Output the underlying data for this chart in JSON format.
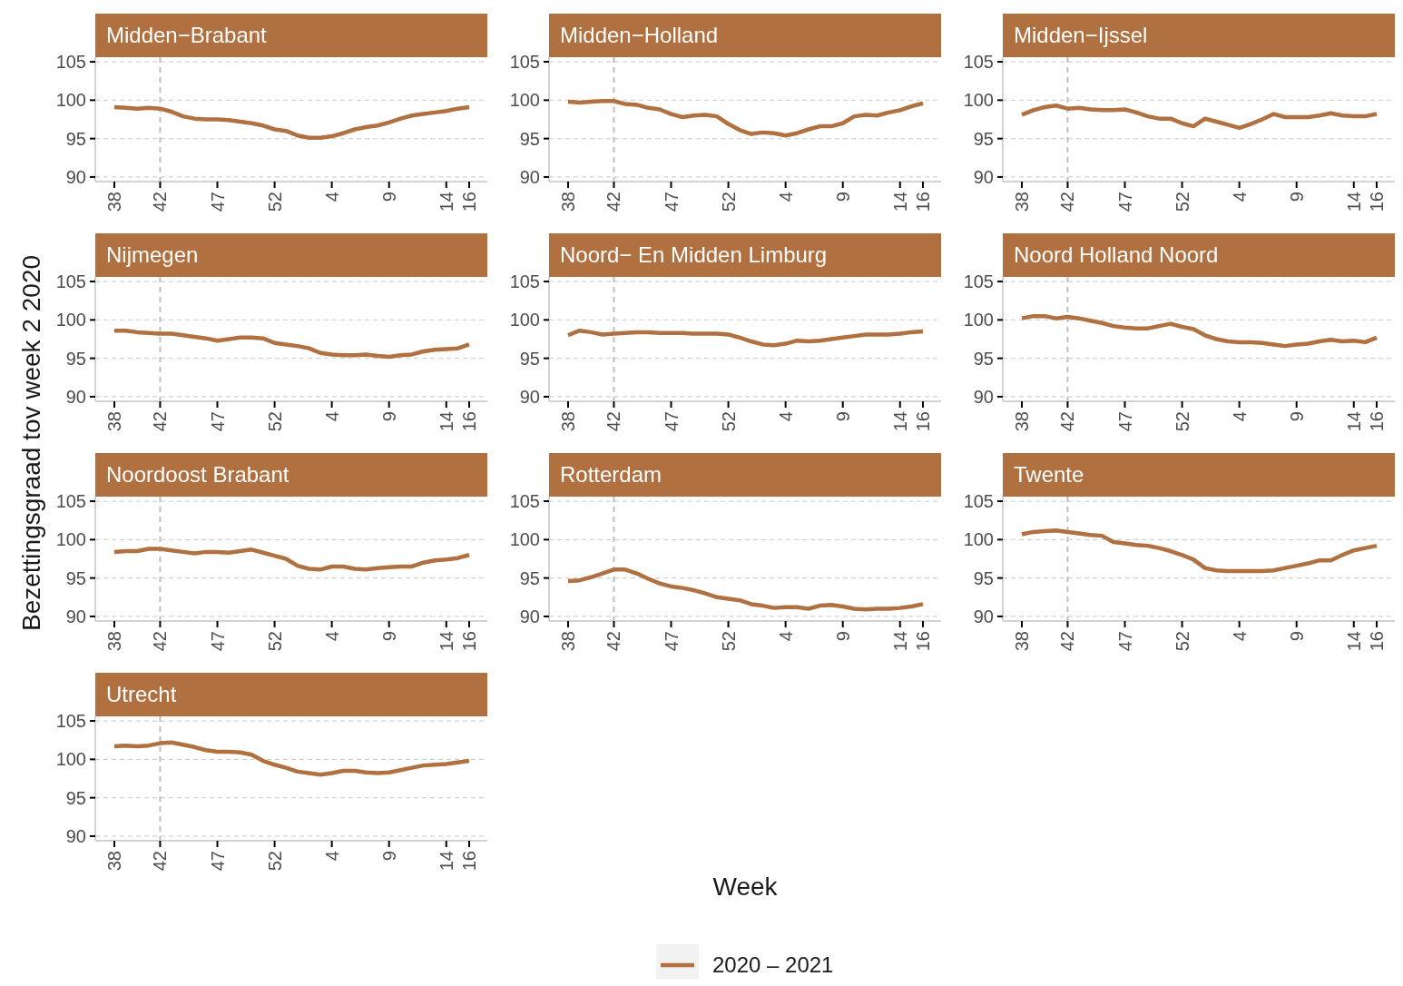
{
  "chart_data": [
    {
      "type": "line",
      "title": "Midden−Brabant",
      "ylabel": "Bezettingsgraad tov week 2 2020",
      "legend": "bottom",
      "categories": [
        "38",
        null,
        null,
        null,
        "42",
        null,
        null,
        null,
        null,
        "47",
        null,
        null,
        null,
        null,
        "52",
        null,
        null,
        null,
        null,
        "4",
        null,
        null,
        null,
        null,
        "9",
        null,
        null,
        null,
        null,
        "14",
        null,
        "16"
      ],
      "ylim": [
        89.4,
        105.6
      ],
      "yticks": [
        90,
        95,
        100,
        105
      ],
      "grid": "y",
      "ref_lines": [
        {
          "axis": "x",
          "value": "42",
          "label": null,
          "color": "#bebebe",
          "line_style": "dashed"
        }
      ],
      "series": [
        {
          "name": "2020 – 2021",
          "color": "#b07040",
          "values": [
            99.1,
            99.0,
            98.9,
            99.0,
            98.9,
            98.5,
            97.9,
            97.6,
            97.5,
            97.5,
            97.4,
            97.2,
            97.0,
            96.7,
            96.2,
            96.0,
            95.4,
            95.1,
            95.1,
            95.3,
            95.7,
            96.2,
            96.5,
            96.7,
            97.1,
            97.6,
            98.0,
            98.2,
            98.4,
            98.6,
            98.9,
            99.1
          ]
        }
      ]
    },
    {
      "type": "line",
      "title": "Midden−Holland",
      "categories": [
        "38",
        null,
        null,
        null,
        "42",
        null,
        null,
        null,
        null,
        "47",
        null,
        null,
        null,
        null,
        "52",
        null,
        null,
        null,
        null,
        "4",
        null,
        null,
        null,
        null,
        "9",
        null,
        null,
        null,
        null,
        "14",
        null,
        "16"
      ],
      "ylim": [
        89.4,
        105.6
      ],
      "yticks": [
        90,
        95,
        100,
        105
      ],
      "grid": "y",
      "ref_lines": [
        {
          "axis": "x",
          "value": "42",
          "label": null,
          "color": "#bebebe",
          "line_style": "dashed"
        }
      ],
      "series": [
        {
          "color": "#b07040",
          "values": [
            99.8,
            99.7,
            99.8,
            99.9,
            99.9,
            99.5,
            99.4,
            99.0,
            98.8,
            98.2,
            97.8,
            98.0,
            98.1,
            97.9,
            96.9,
            96.1,
            95.6,
            95.8,
            95.7,
            95.4,
            95.7,
            96.2,
            96.6,
            96.6,
            97.0,
            97.9,
            98.1,
            98.0,
            98.4,
            98.7,
            99.2,
            99.6
          ]
        }
      ]
    },
    {
      "type": "line",
      "title": "Midden−Ijssel",
      "categories": [
        "38",
        null,
        null,
        null,
        "42",
        null,
        null,
        null,
        null,
        "47",
        null,
        null,
        null,
        null,
        "52",
        null,
        null,
        null,
        null,
        "4",
        null,
        null,
        null,
        null,
        "9",
        null,
        null,
        null,
        null,
        "14",
        null,
        "16"
      ],
      "ylim": [
        89.4,
        105.6
      ],
      "yticks": [
        90,
        95,
        100,
        105
      ],
      "grid": "y",
      "ref_lines": [
        {
          "axis": "x",
          "value": "42",
          "label": null,
          "color": "#bebebe",
          "line_style": "dashed"
        }
      ],
      "series": [
        {
          "color": "#b07040",
          "values": [
            98.1,
            98.7,
            99.1,
            99.3,
            98.9,
            99.0,
            98.8,
            98.7,
            98.7,
            98.8,
            98.4,
            97.9,
            97.6,
            97.6,
            97.0,
            96.6,
            97.6,
            97.2,
            96.8,
            96.4,
            96.9,
            97.5,
            98.2,
            97.8,
            97.8,
            97.8,
            98.0,
            98.3,
            98.0,
            97.9,
            97.9,
            98.2
          ]
        }
      ]
    },
    {
      "type": "line",
      "title": "Nijmegen",
      "categories": [
        "38",
        null,
        null,
        null,
        "42",
        null,
        null,
        null,
        null,
        "47",
        null,
        null,
        null,
        null,
        "52",
        null,
        null,
        null,
        null,
        "4",
        null,
        null,
        null,
        null,
        "9",
        null,
        null,
        null,
        null,
        "14",
        null,
        "16"
      ],
      "ylim": [
        89.4,
        105.6
      ],
      "yticks": [
        90,
        95,
        100,
        105
      ],
      "grid": "y",
      "ref_lines": [
        {
          "axis": "x",
          "value": "42",
          "label": null,
          "color": "#bebebe",
          "line_style": "dashed"
        }
      ],
      "series": [
        {
          "color": "#b07040",
          "values": [
            98.6,
            98.6,
            98.4,
            98.3,
            98.2,
            98.2,
            98.0,
            97.8,
            97.6,
            97.3,
            97.5,
            97.7,
            97.7,
            97.6,
            97.0,
            96.8,
            96.6,
            96.3,
            95.7,
            95.5,
            95.4,
            95.4,
            95.5,
            95.3,
            95.2,
            95.4,
            95.5,
            95.9,
            96.1,
            96.2,
            96.3,
            96.8
          ]
        }
      ]
    },
    {
      "type": "line",
      "title": "Noord− En Midden Limburg",
      "categories": [
        "38",
        null,
        null,
        null,
        "42",
        null,
        null,
        null,
        null,
        "47",
        null,
        null,
        null,
        null,
        "52",
        null,
        null,
        null,
        null,
        "4",
        null,
        null,
        null,
        null,
        "9",
        null,
        null,
        null,
        null,
        "14",
        null,
        "16"
      ],
      "ylim": [
        89.4,
        105.6
      ],
      "yticks": [
        90,
        95,
        100,
        105
      ],
      "grid": "y",
      "ref_lines": [
        {
          "axis": "x",
          "value": "42",
          "label": null,
          "color": "#bebebe",
          "line_style": "dashed"
        }
      ],
      "series": [
        {
          "color": "#b07040",
          "values": [
            98.0,
            98.6,
            98.4,
            98.1,
            98.2,
            98.3,
            98.4,
            98.4,
            98.3,
            98.3,
            98.3,
            98.2,
            98.2,
            98.2,
            98.1,
            97.7,
            97.2,
            96.8,
            96.7,
            96.9,
            97.3,
            97.2,
            97.3,
            97.5,
            97.7,
            97.9,
            98.1,
            98.1,
            98.1,
            98.2,
            98.4,
            98.5
          ]
        }
      ]
    },
    {
      "type": "line",
      "title": "Noord Holland Noord",
      "categories": [
        "38",
        null,
        null,
        null,
        "42",
        null,
        null,
        null,
        null,
        "47",
        null,
        null,
        null,
        null,
        "52",
        null,
        null,
        null,
        null,
        "4",
        null,
        null,
        null,
        null,
        "9",
        null,
        null,
        null,
        null,
        "14",
        null,
        "16"
      ],
      "ylim": [
        89.4,
        105.6
      ],
      "yticks": [
        90,
        95,
        100,
        105
      ],
      "grid": "y",
      "ref_lines": [
        {
          "axis": "x",
          "value": "42",
          "label": null,
          "color": "#bebebe",
          "line_style": "dashed"
        }
      ],
      "series": [
        {
          "color": "#b07040",
          "values": [
            100.2,
            100.5,
            100.5,
            100.2,
            100.4,
            100.2,
            99.9,
            99.6,
            99.2,
            99.0,
            98.9,
            98.9,
            99.2,
            99.5,
            99.1,
            98.8,
            98.0,
            97.5,
            97.2,
            97.1,
            97.1,
            97.0,
            96.8,
            96.6,
            96.8,
            96.9,
            97.2,
            97.4,
            97.2,
            97.3,
            97.1,
            97.7
          ]
        }
      ]
    },
    {
      "type": "line",
      "title": "Noordoost Brabant",
      "categories": [
        "38",
        null,
        null,
        null,
        "42",
        null,
        null,
        null,
        null,
        "47",
        null,
        null,
        null,
        null,
        "52",
        null,
        null,
        null,
        null,
        "4",
        null,
        null,
        null,
        null,
        "9",
        null,
        null,
        null,
        null,
        "14",
        null,
        "16"
      ],
      "ylim": [
        89.4,
        105.6
      ],
      "yticks": [
        90,
        95,
        100,
        105
      ],
      "grid": "y",
      "ref_lines": [
        {
          "axis": "x",
          "value": "42",
          "label": null,
          "color": "#bebebe",
          "line_style": "dashed"
        }
      ],
      "series": [
        {
          "color": "#b07040",
          "values": [
            98.4,
            98.5,
            98.5,
            98.8,
            98.8,
            98.6,
            98.4,
            98.2,
            98.4,
            98.4,
            98.3,
            98.5,
            98.7,
            98.3,
            97.9,
            97.5,
            96.6,
            96.2,
            96.1,
            96.5,
            96.5,
            96.2,
            96.1,
            96.3,
            96.4,
            96.5,
            96.5,
            97.0,
            97.3,
            97.4,
            97.6,
            98.0
          ]
        }
      ]
    },
    {
      "type": "line",
      "title": "Rotterdam",
      "xlabel": "Week",
      "categories": [
        "38",
        null,
        null,
        null,
        "42",
        null,
        null,
        null,
        null,
        "47",
        null,
        null,
        null,
        null,
        "52",
        null,
        null,
        null,
        null,
        "4",
        null,
        null,
        null,
        null,
        "9",
        null,
        null,
        null,
        null,
        "14",
        null,
        "16"
      ],
      "ylim": [
        89.4,
        105.6
      ],
      "yticks": [
        90,
        95,
        100,
        105
      ],
      "grid": "y",
      "ref_lines": [
        {
          "axis": "x",
          "value": "42",
          "label": null,
          "color": "#bebebe",
          "line_style": "dashed"
        }
      ],
      "series": [
        {
          "color": "#b07040",
          "values": [
            94.6,
            94.7,
            95.1,
            95.6,
            96.1,
            96.1,
            95.6,
            94.9,
            94.3,
            93.9,
            93.7,
            93.4,
            93.0,
            92.5,
            92.3,
            92.1,
            91.6,
            91.4,
            91.1,
            91.2,
            91.2,
            91.0,
            91.4,
            91.5,
            91.3,
            91.0,
            90.9,
            91.0,
            91.0,
            91.1,
            91.3,
            91.6
          ]
        }
      ]
    },
    {
      "type": "line",
      "title": "Twente",
      "categories": [
        "38",
        null,
        null,
        null,
        "42",
        null,
        null,
        null,
        null,
        "47",
        null,
        null,
        null,
        null,
        "52",
        null,
        null,
        null,
        null,
        "4",
        null,
        null,
        null,
        null,
        "9",
        null,
        null,
        null,
        null,
        "14",
        null,
        "16"
      ],
      "ylim": [
        89.4,
        105.6
      ],
      "yticks": [
        90,
        95,
        100,
        105
      ],
      "grid": "y",
      "ref_lines": [
        {
          "axis": "x",
          "value": "42",
          "label": null,
          "color": "#bebebe",
          "line_style": "dashed"
        }
      ],
      "series": [
        {
          "color": "#b07040",
          "values": [
            100.7,
            101.0,
            101.1,
            101.2,
            101.0,
            100.8,
            100.6,
            100.5,
            99.7,
            99.5,
            99.3,
            99.2,
            98.9,
            98.5,
            98.0,
            97.4,
            96.3,
            96.0,
            95.9,
            95.9,
            95.9,
            95.9,
            96.0,
            96.3,
            96.6,
            96.9,
            97.3,
            97.3,
            98.0,
            98.6,
            98.9,
            99.2
          ]
        }
      ]
    },
    {
      "type": "line",
      "title": "Utrecht",
      "categories": [
        "38",
        null,
        null,
        null,
        "42",
        null,
        null,
        null,
        null,
        "47",
        null,
        null,
        null,
        null,
        "52",
        null,
        null,
        null,
        null,
        "4",
        null,
        null,
        null,
        null,
        "9",
        null,
        null,
        null,
        null,
        "14",
        null,
        "16"
      ],
      "ylim": [
        89.4,
        105.6
      ],
      "yticks": [
        90,
        95,
        100,
        105
      ],
      "grid": "y",
      "ref_lines": [
        {
          "axis": "x",
          "value": "42",
          "label": null,
          "color": "#bebebe",
          "line_style": "dashed"
        }
      ],
      "series": [
        {
          "color": "#b07040",
          "values": [
            101.7,
            101.8,
            101.7,
            101.8,
            102.1,
            102.2,
            101.9,
            101.6,
            101.2,
            101.0,
            101.0,
            100.9,
            100.6,
            99.8,
            99.3,
            98.9,
            98.4,
            98.2,
            98.0,
            98.2,
            98.5,
            98.5,
            98.3,
            98.2,
            98.3,
            98.6,
            98.9,
            99.2,
            99.3,
            99.4,
            99.6,
            99.8
          ]
        }
      ]
    }
  ]
}
